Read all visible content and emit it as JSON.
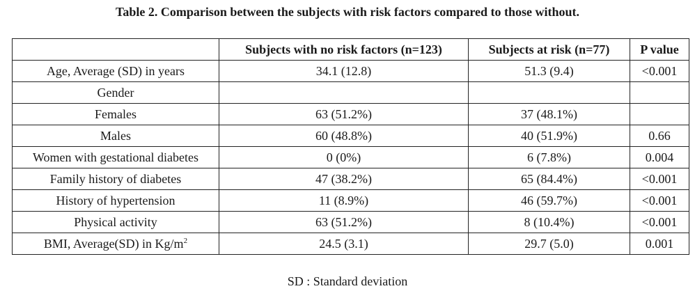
{
  "caption": "Table 2. Comparison between the subjects with risk factors compared to those without.",
  "table": {
    "headers": [
      "",
      "Subjects with no risk factors (n=123)",
      "Subjects at risk (n=77)",
      "P value"
    ],
    "rows": [
      [
        "Age, Average (SD) in years",
        "34.1 (12.8)",
        "51.3 (9.4)",
        "<0.001"
      ],
      [
        "Gender",
        "",
        "",
        ""
      ],
      [
        "Females",
        "63 (51.2%)",
        "37 (48.1%)",
        ""
      ],
      [
        "Males",
        "60 (48.8%)",
        "40 (51.9%)",
        "0.66"
      ],
      [
        "Women with gestational diabetes",
        "0 (0%)",
        "6 (7.8%)",
        "0.004"
      ],
      [
        "Family history of diabetes",
        "47 (38.2%)",
        "65 (84.4%)",
        "<0.001"
      ],
      [
        "History of hypertension",
        "11 (8.9%)",
        "46 (59.7%)",
        "<0.001"
      ],
      [
        "Physical activity",
        "63 (51.2%)",
        "8 (10.4%)",
        "<0.001"
      ],
      [
        "BMI, Average(SD) in Kg/m",
        "24.5 (3.1)",
        "29.7 (5.0)",
        "0.001"
      ]
    ],
    "bmi_unit_superscript": "2"
  },
  "footnote": "SD : Standard deviation"
}
